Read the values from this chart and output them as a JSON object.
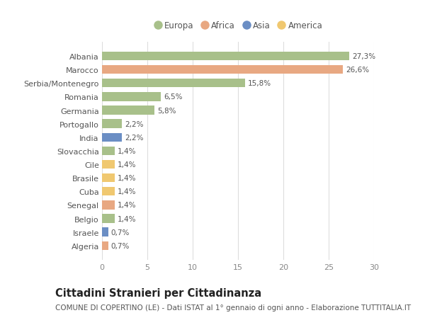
{
  "countries": [
    "Albania",
    "Marocco",
    "Serbia/Montenegro",
    "Romania",
    "Germania",
    "Portogallo",
    "India",
    "Slovacchia",
    "Cile",
    "Brasile",
    "Cuba",
    "Senegal",
    "Belgio",
    "Israele",
    "Algeria"
  ],
  "values": [
    27.3,
    26.6,
    15.8,
    6.5,
    5.8,
    2.2,
    2.2,
    1.4,
    1.4,
    1.4,
    1.4,
    1.4,
    1.4,
    0.7,
    0.7
  ],
  "labels": [
    "27,3%",
    "26,6%",
    "15,8%",
    "6,5%",
    "5,8%",
    "2,2%",
    "2,2%",
    "1,4%",
    "1,4%",
    "1,4%",
    "1,4%",
    "1,4%",
    "1,4%",
    "0,7%",
    "0,7%"
  ],
  "continents": [
    "Europa",
    "Africa",
    "Europa",
    "Europa",
    "Europa",
    "Europa",
    "Asia",
    "Europa",
    "America",
    "America",
    "America",
    "Africa",
    "Europa",
    "Asia",
    "Africa"
  ],
  "continent_colors": {
    "Europa": "#a8c08a",
    "Africa": "#e8a882",
    "Asia": "#6b8ec4",
    "America": "#f0c870"
  },
  "legend_order": [
    "Europa",
    "Africa",
    "Asia",
    "America"
  ],
  "title": "Cittadini Stranieri per Cittadinanza",
  "subtitle": "COMUNE DI COPERTINO (LE) - Dati ISTAT al 1° gennaio di ogni anno - Elaborazione TUTTITALIA.IT",
  "xlim": [
    0,
    30
  ],
  "xticks": [
    0,
    5,
    10,
    15,
    20,
    25,
    30
  ],
  "bg_color": "#ffffff",
  "grid_color": "#dddddd",
  "bar_height": 0.65,
  "title_fontsize": 10.5,
  "subtitle_fontsize": 7.5,
  "label_fontsize": 7.5,
  "tick_fontsize": 8,
  "legend_fontsize": 8.5
}
